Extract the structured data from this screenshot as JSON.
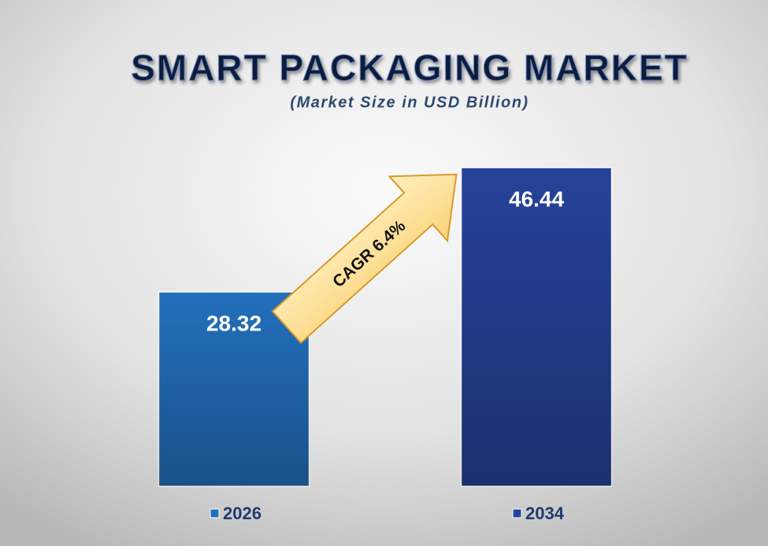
{
  "chart_data": {
    "type": "bar",
    "title": "SMART PACKAGING MARKET",
    "subtitle": "(Market Size in USD Billion)",
    "categories": [
      "2026",
      "2034"
    ],
    "values": [
      28.32,
      46.44
    ],
    "colors": [
      "#2370bd",
      "#26439a"
    ],
    "annotation": "CAGR 6.4%"
  }
}
